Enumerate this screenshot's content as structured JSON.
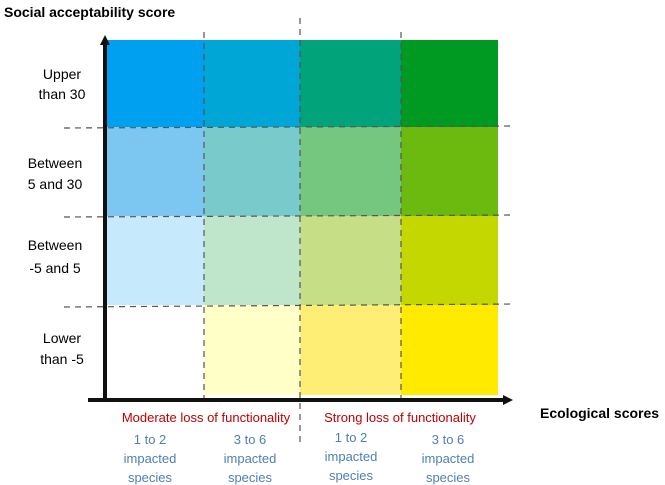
{
  "y_axis_title": "Social acceptability score",
  "x_axis_title": "Ecological scores",
  "rows": [
    {
      "line1": "Upper",
      "line2": "than 30"
    },
    {
      "line1": "Between",
      "line2": "5 and 30"
    },
    {
      "line1": "Between",
      "line2": "-5 and 5"
    },
    {
      "line1": "Lower",
      "line2": "than -5"
    }
  ],
  "groups": [
    {
      "label": "Moderate loss of functionality"
    },
    {
      "label": "Strong loss of functionality"
    }
  ],
  "columns": [
    {
      "line1": "1 to 2",
      "line2": "impacted",
      "line3": "species"
    },
    {
      "line1": "3 to 6",
      "line2": "impacted",
      "line3": "species"
    },
    {
      "line1": "1 to 2",
      "line2": "impacted",
      "line3": "species"
    },
    {
      "line1": "3 to 6",
      "line2": "impacted",
      "line3": "species"
    }
  ],
  "cell_colors": [
    [
      "#00a0f0",
      "#00a6d6",
      "#00a37a",
      "#009a22"
    ],
    [
      "#7cc6f2",
      "#79cbcb",
      "#75c67f",
      "#6cba10"
    ],
    [
      "#c6eafb",
      "#bfe6cb",
      "#c6df86",
      "#c5d700"
    ],
    [
      "#ffffff",
      "#ffffc7",
      "#ffee75",
      "#ffea00"
    ]
  ],
  "colors": {
    "group_label": "#c00000",
    "column_label": "#4f7fb3",
    "axis": "#111111",
    "dash": "#555555"
  }
}
